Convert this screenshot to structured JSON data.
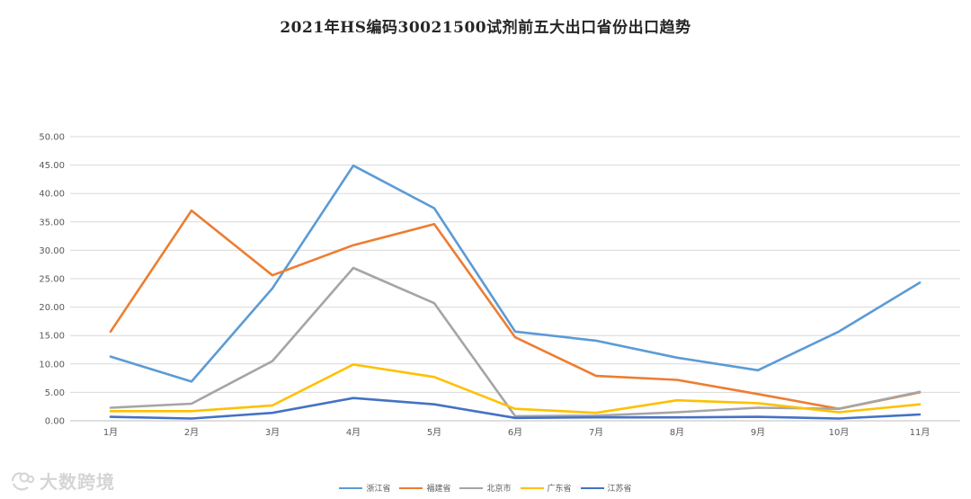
{
  "chart_data": {
    "type": "line",
    "title": "2021年HS编码30021500试剂前五大出口省份出口趋势",
    "xlabel": "",
    "ylabel": "",
    "categories": [
      "1月",
      "2月",
      "3月",
      "4月",
      "5月",
      "6月",
      "7月",
      "8月",
      "9月",
      "10月",
      "11月"
    ],
    "ylim": [
      0,
      50
    ],
    "yticks": [
      "0.00",
      "5.00",
      "10.00",
      "15.00",
      "20.00",
      "25.00",
      "30.00",
      "35.00",
      "40.00",
      "45.00",
      "50.00"
    ],
    "grid": true,
    "legend_position": "bottom",
    "series": [
      {
        "name": "浙江省",
        "color": "#5B9BD5",
        "values": [
          11.3,
          6.9,
          23.3,
          44.9,
          37.4,
          15.7,
          14.1,
          11.1,
          8.9,
          15.7,
          24.3
        ]
      },
      {
        "name": "福建省",
        "color": "#ED7D31",
        "values": [
          15.7,
          37.0,
          25.6,
          30.9,
          34.6,
          14.7,
          7.9,
          7.2,
          4.7,
          2.1,
          5.0
        ]
      },
      {
        "name": "北京市",
        "color": "#A5A5A5",
        "values": [
          2.3,
          3.0,
          10.5,
          26.9,
          20.7,
          0.8,
          0.9,
          1.5,
          2.3,
          2.1,
          5.1
        ]
      },
      {
        "name": "广东省",
        "color": "#FFC000",
        "values": [
          1.7,
          1.7,
          2.7,
          9.9,
          7.7,
          2.1,
          1.4,
          3.6,
          3.1,
          1.5,
          2.9
        ]
      },
      {
        "name": "江苏省",
        "color": "#4472C4",
        "values": [
          0.7,
          0.4,
          1.4,
          4.0,
          2.9,
          0.5,
          0.6,
          0.6,
          0.7,
          0.4,
          1.1
        ]
      }
    ]
  },
  "watermark": {
    "text": "大数跨境",
    "icon": "brand-logo-icon"
  }
}
